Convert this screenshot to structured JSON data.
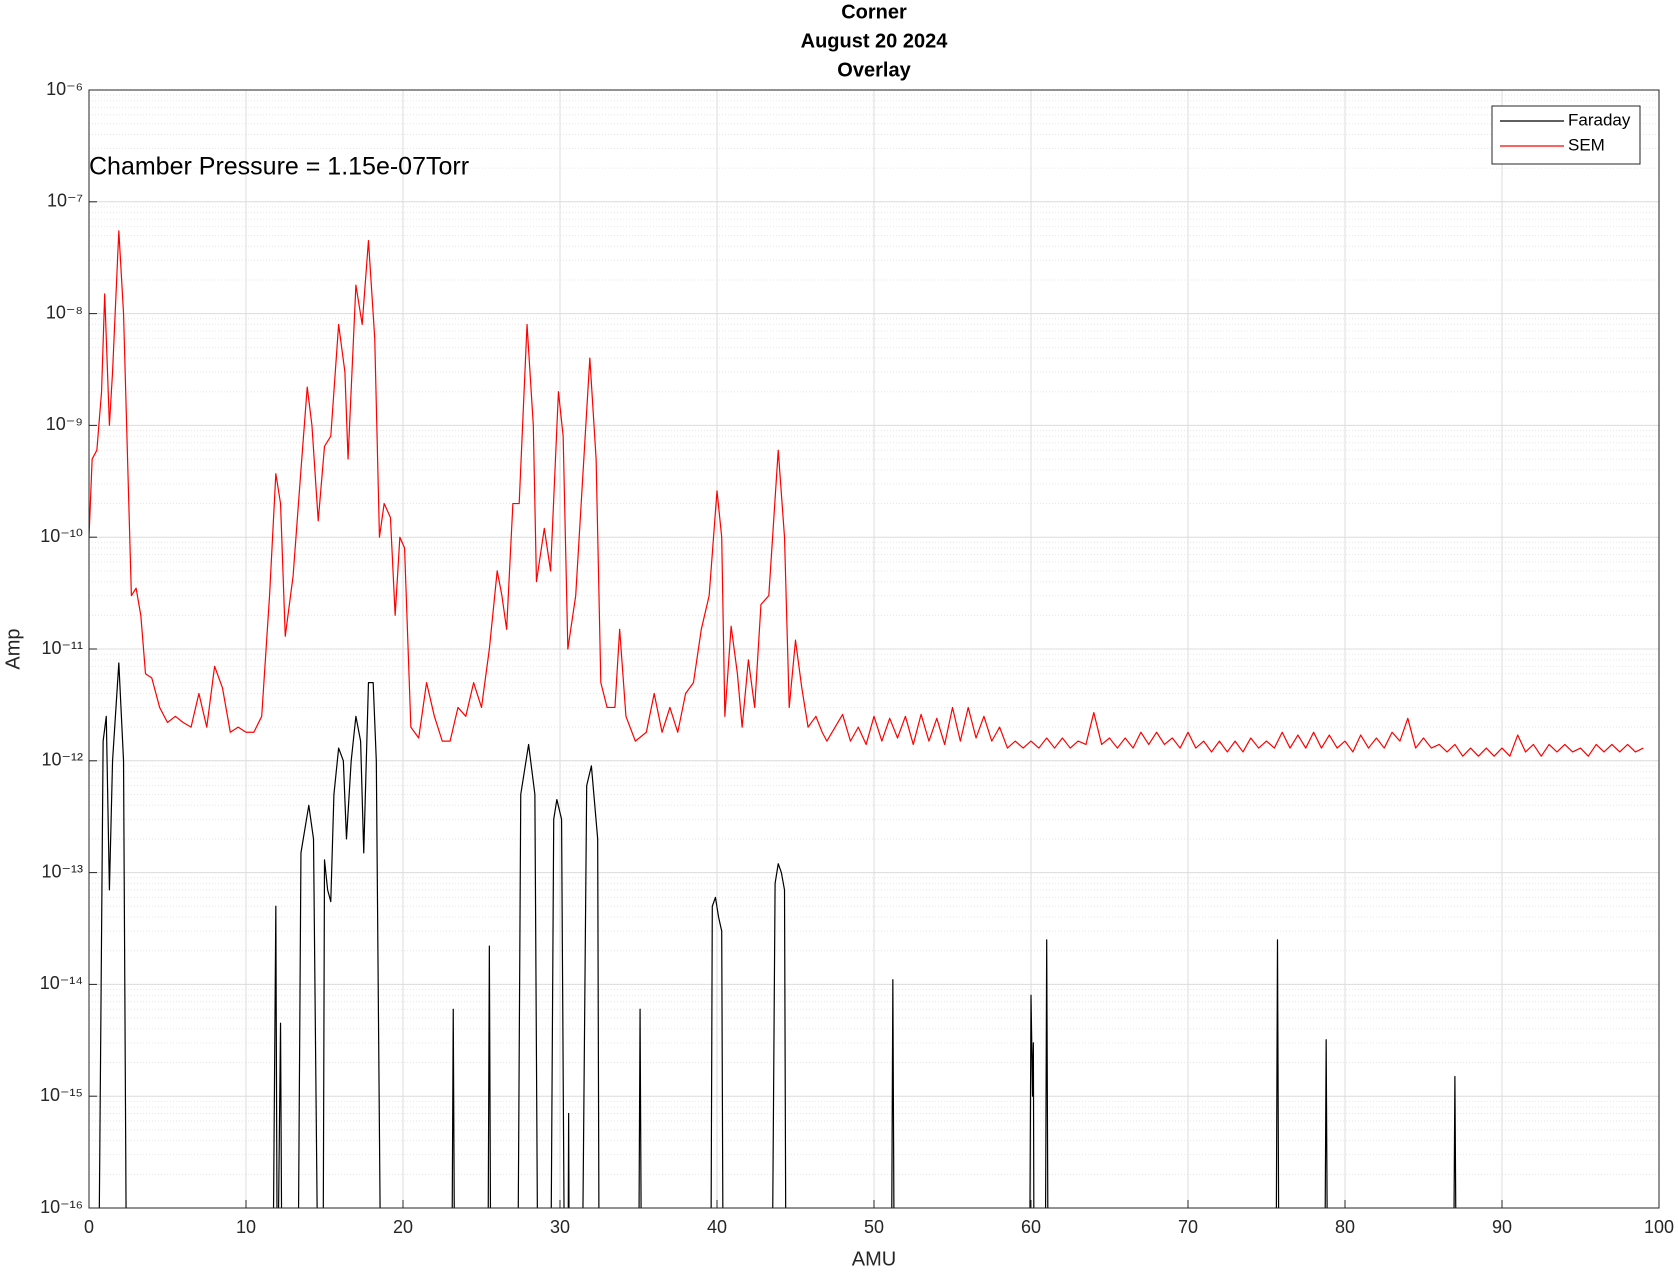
{
  "chart_data": {
    "type": "line",
    "title": [
      "Corner",
      "August 20 2024",
      "Overlay"
    ],
    "annotation": "Chamber Pressure = 1.15e-07Torr",
    "x_label": "AMU",
    "y_label": "Amp",
    "xlim": [
      0,
      100
    ],
    "xticks": [
      0,
      10,
      20,
      30,
      40,
      50,
      60,
      70,
      80,
      90,
      100
    ],
    "ylim": [
      1e-16,
      1e-06
    ],
    "log_y": true,
    "grid": true,
    "minor_grid": true,
    "legend": "northeast",
    "yticks": [
      {
        "value": 1e-16,
        "label": "10⁻¹⁶"
      },
      {
        "value": 1e-15,
        "label": "10⁻¹⁵"
      },
      {
        "value": 1e-14,
        "label": "10⁻¹⁴"
      },
      {
        "value": 1e-13,
        "label": "10⁻¹³"
      },
      {
        "value": 1e-12,
        "label": "10⁻¹²"
      },
      {
        "value": 1e-11,
        "label": "10⁻¹¹"
      },
      {
        "value": 1e-10,
        "label": "10⁻¹⁰"
      },
      {
        "value": 1e-09,
        "label": "10⁻⁹"
      },
      {
        "value": 1e-08,
        "label": "10⁻⁸"
      },
      {
        "value": 1e-07,
        "label": "10⁻⁷"
      },
      {
        "value": 1e-06,
        "label": "10⁻⁶"
      }
    ],
    "series": [
      {
        "name": "Faraday",
        "color": "#000000",
        "x": [
          0.6,
          0.9,
          1.1,
          1.3,
          1.5,
          1.9,
          2.2,
          2.4,
          11.7,
          11.9,
          12.0,
          12.2,
          12.3,
          13.3,
          13.5,
          14.0,
          14.3,
          14.6,
          14.9,
          15.0,
          15.2,
          15.4,
          15.6,
          15.9,
          16.2,
          16.4,
          16.7,
          17.0,
          17.3,
          17.5,
          17.8,
          18.1,
          18.3,
          18.6,
          23.1,
          23.2,
          23.3,
          25.4,
          25.5,
          25.6,
          27.3,
          27.5,
          28.0,
          28.4,
          28.6,
          29.4,
          29.6,
          29.8,
          30.1,
          30.3,
          30.5,
          30.55,
          30.6,
          31.4,
          31.7,
          32.0,
          32.4,
          32.5,
          35.0,
          35.1,
          35.2,
          39.6,
          39.7,
          39.9,
          40.1,
          40.3,
          40.4,
          43.5,
          43.7,
          43.9,
          44.1,
          44.3,
          44.4,
          51.1,
          51.2,
          51.3,
          59.9,
          60.0,
          60.1,
          60.15,
          60.2,
          60.9,
          61.0,
          61.1,
          75.6,
          75.7,
          75.8,
          78.7,
          78.8,
          78.9,
          86.9,
          87.0,
          87.1
        ],
        "values": [
          1e-17,
          1.5e-12,
          2.5e-12,
          7e-14,
          1e-12,
          7.5e-12,
          1e-12,
          1e-17,
          1e-17,
          5e-14,
          1e-17,
          4.5e-15,
          1e-17,
          1e-17,
          1.5e-13,
          4e-13,
          2e-13,
          1e-17,
          1e-17,
          1.3e-13,
          7e-14,
          5.5e-14,
          5e-13,
          1.3e-12,
          1e-12,
          2e-13,
          1e-12,
          2.5e-12,
          1.5e-12,
          1.5e-13,
          5e-12,
          5e-12,
          1e-12,
          1e-17,
          1e-17,
          6e-15,
          1e-17,
          1e-17,
          2.2e-14,
          1e-17,
          1e-17,
          5e-13,
          1.4e-12,
          5e-13,
          1e-17,
          1e-17,
          3e-13,
          4.5e-13,
          3e-13,
          1e-17,
          1e-17,
          7e-16,
          1e-17,
          1e-17,
          6e-13,
          9e-13,
          2e-13,
          1e-17,
          1e-17,
          6e-15,
          1e-17,
          1e-17,
          5e-14,
          6e-14,
          4e-14,
          3e-14,
          1e-17,
          1e-17,
          8e-14,
          1.2e-13,
          1e-13,
          7e-14,
          1e-17,
          1e-17,
          1.1e-14,
          1e-17,
          1e-17,
          8e-15,
          1e-15,
          3e-15,
          1e-17,
          1e-17,
          2.5e-14,
          1e-17,
          1e-17,
          2.5e-14,
          1e-17,
          1e-17,
          3.2e-15,
          1e-17,
          1e-17,
          1.5e-15,
          1e-17
        ]
      },
      {
        "name": "SEM",
        "color": "#ff0000",
        "x": [
          0,
          0.2,
          0.5,
          0.8,
          1.0,
          1.3,
          1.5,
          1.9,
          2.2,
          2.5,
          2.7,
          3.0,
          3.3,
          3.6,
          4.0,
          4.5,
          5.0,
          5.5,
          6.0,
          6.5,
          7.0,
          7.5,
          8.0,
          8.5,
          9.0,
          9.5,
          10,
          10.5,
          11,
          11.5,
          11.9,
          12.2,
          12.5,
          13,
          13.5,
          13.9,
          14.2,
          14.6,
          15,
          15.4,
          15.9,
          16.3,
          16.5,
          17,
          17.4,
          17.8,
          18.2,
          18.5,
          18.8,
          19.2,
          19.5,
          19.8,
          20.1,
          20.5,
          21,
          21.5,
          22,
          22.5,
          23,
          23.5,
          24,
          24.5,
          25,
          25.5,
          26,
          26.3,
          26.6,
          27,
          27.4,
          27.9,
          28.3,
          28.5,
          29,
          29.4,
          29.9,
          30.2,
          30.5,
          31,
          31.9,
          32.3,
          32.6,
          33,
          33.5,
          33.8,
          34.2,
          34.8,
          35.5,
          36,
          36.5,
          37,
          37.5,
          38,
          38.5,
          39,
          39.5,
          40,
          40.3,
          40.5,
          40.9,
          41.3,
          41.6,
          42,
          42.4,
          42.8,
          43.3,
          43.9,
          44.3,
          44.6,
          45,
          45.4,
          45.8,
          46.3,
          46.7,
          47,
          48,
          48.5,
          49,
          49.5,
          50,
          50.5,
          51,
          51.5,
          52,
          52.5,
          53,
          53.5,
          54,
          54.5,
          55,
          55.5,
          56,
          56.5,
          57,
          57.5,
          58,
          58.5,
          59,
          59.5,
          60,
          60.5,
          61,
          61.5,
          62,
          62.5,
          63,
          63.5,
          64,
          64.5,
          65,
          65.5,
          66,
          66.5,
          67,
          67.5,
          68,
          68.5,
          69,
          69.5,
          70,
          70.5,
          71,
          71.5,
          72,
          72.5,
          73,
          73.5,
          74,
          74.5,
          75,
          75.5,
          76,
          76.5,
          77,
          77.5,
          78,
          78.5,
          79,
          79.5,
          80,
          80.5,
          81,
          81.5,
          82,
          82.5,
          83,
          83.5,
          84,
          84.5,
          85,
          85.5,
          86,
          86.5,
          87,
          87.5,
          88,
          88.5,
          89,
          89.5,
          90,
          90.5,
          91,
          91.5,
          92,
          92.5,
          93,
          93.5,
          94,
          94.5,
          95,
          95.5,
          96,
          96.5,
          97,
          97.5,
          98,
          98.5,
          99
        ],
        "values": [
          1e-10,
          5e-10,
          6e-10,
          2e-09,
          1.5e-08,
          1e-09,
          3e-09,
          5.5e-08,
          1e-08,
          3e-10,
          3e-11,
          3.5e-11,
          2e-11,
          6e-12,
          5.5e-12,
          3e-12,
          2.2e-12,
          2.5e-12,
          2.2e-12,
          2e-12,
          4e-12,
          2e-12,
          7e-12,
          4.5e-12,
          1.8e-12,
          2e-12,
          1.8e-12,
          1.8e-12,
          2.5e-12,
          3e-11,
          3.7e-10,
          2e-10,
          1.3e-11,
          4.5e-11,
          4e-10,
          2.2e-09,
          1e-09,
          1.4e-10,
          6.5e-10,
          8e-10,
          8e-09,
          3e-09,
          5e-10,
          1.8e-08,
          8e-09,
          4.5e-08,
          6e-09,
          1e-10,
          2e-10,
          1.5e-10,
          2e-11,
          1e-10,
          8e-11,
          2e-12,
          1.6e-12,
          5e-12,
          2.5e-12,
          1.5e-12,
          1.5e-12,
          3e-12,
          2.5e-12,
          5e-12,
          3e-12,
          1e-11,
          5e-11,
          3e-11,
          1.5e-11,
          2e-10,
          2e-10,
          8e-09,
          1e-09,
          4e-11,
          1.2e-10,
          5e-11,
          2e-09,
          8e-10,
          1e-11,
          3e-11,
          4e-09,
          5e-10,
          5e-12,
          3e-12,
          3e-12,
          1.5e-11,
          2.5e-12,
          1.5e-12,
          1.8e-12,
          4e-12,
          1.8e-12,
          3e-12,
          1.8e-12,
          4e-12,
          5e-12,
          1.5e-11,
          3e-11,
          2.6e-10,
          1e-10,
          2.5e-12,
          1.6e-11,
          6e-12,
          2e-12,
          8e-12,
          3e-12,
          2.5e-11,
          3e-11,
          6e-10,
          1e-10,
          3e-12,
          1.2e-11,
          4.5e-12,
          2e-12,
          2.5e-12,
          1.8e-12,
          1.5e-12,
          2.6e-12,
          1.5e-12,
          2e-12,
          1.4e-12,
          2.5e-12,
          1.5e-12,
          2.4e-12,
          1.6e-12,
          2.5e-12,
          1.4e-12,
          2.6e-12,
          1.5e-12,
          2.4e-12,
          1.4e-12,
          3e-12,
          1.5e-12,
          3e-12,
          1.6e-12,
          2.5e-12,
          1.5e-12,
          2e-12,
          1.3e-12,
          1.5e-12,
          1.3e-12,
          1.5e-12,
          1.3e-12,
          1.6e-12,
          1.3e-12,
          1.6e-12,
          1.3e-12,
          1.5e-12,
          1.4e-12,
          2.7e-12,
          1.4e-12,
          1.6e-12,
          1.3e-12,
          1.6e-12,
          1.3e-12,
          1.8e-12,
          1.4e-12,
          1.8e-12,
          1.4e-12,
          1.6e-12,
          1.3e-12,
          1.8e-12,
          1.3e-12,
          1.5e-12,
          1.2e-12,
          1.5e-12,
          1.2e-12,
          1.5e-12,
          1.2e-12,
          1.6e-12,
          1.3e-12,
          1.5e-12,
          1.3e-12,
          1.8e-12,
          1.3e-12,
          1.7e-12,
          1.3e-12,
          1.8e-12,
          1.3e-12,
          1.7e-12,
          1.3e-12,
          1.5e-12,
          1.2e-12,
          1.7e-12,
          1.3e-12,
          1.6e-12,
          1.3e-12,
          1.8e-12,
          1.5e-12,
          2.4e-12,
          1.3e-12,
          1.6e-12,
          1.3e-12,
          1.4e-12,
          1.2e-12,
          1.4e-12,
          1.1e-12,
          1.3e-12,
          1.1e-12,
          1.3e-12,
          1.1e-12,
          1.3e-12,
          1.1e-12,
          1.7e-12,
          1.2e-12,
          1.4e-12,
          1.1e-12,
          1.4e-12,
          1.2e-12,
          1.4e-12,
          1.2e-12,
          1.3e-12,
          1.1e-12,
          1.4e-12,
          1.2e-12,
          1.4e-12,
          1.2e-12,
          1.4e-12,
          1.2e-12,
          1.3e-12
        ]
      }
    ]
  }
}
